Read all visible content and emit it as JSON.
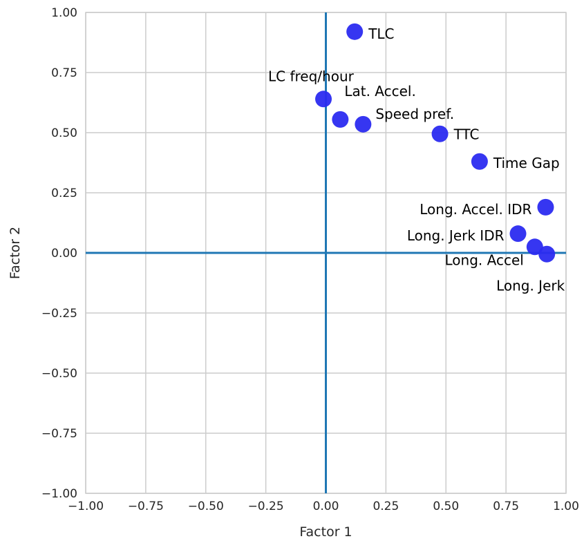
{
  "chart_data": {
    "type": "scatter",
    "title": "",
    "xlabel": "Factor 1",
    "ylabel": "Factor 2",
    "xlim": [
      -1.0,
      1.0
    ],
    "ylim": [
      -1.0,
      1.0
    ],
    "xticks": [
      "−1.00",
      "−0.75",
      "−0.50",
      "−0.25",
      "0.00",
      "0.25",
      "0.50",
      "0.75",
      "1.00"
    ],
    "yticks": [
      "1.00",
      "0.75",
      "0.50",
      "0.25",
      "0.00",
      "−0.25",
      "−0.50",
      "−0.75",
      "−1.00"
    ],
    "grid": true,
    "reference_lines": {
      "x": 0,
      "y": 0,
      "color": "#1f77b4"
    },
    "point_color": "#2b2bf0",
    "grid_color": "#cccccc",
    "points": [
      {
        "label": "TLC",
        "x": 0.12,
        "y": 0.92
      },
      {
        "label": "LC freq/hour",
        "x": -0.01,
        "y": 0.64
      },
      {
        "label": "Lat. Accel.",
        "x": 0.06,
        "y": 0.555
      },
      {
        "label": "Speed pref.",
        "x": 0.155,
        "y": 0.535
      },
      {
        "label": "TTC",
        "x": 0.475,
        "y": 0.495
      },
      {
        "label": "Time Gap",
        "x": 0.64,
        "y": 0.38
      },
      {
        "label": "Long. Accel. IDR",
        "x": 0.915,
        "y": 0.19
      },
      {
        "label": "Long. Jerk IDR",
        "x": 0.8,
        "y": 0.08
      },
      {
        "label": "Long. Accel",
        "x": 0.87,
        "y": 0.025
      },
      {
        "label": "Long. Jerk",
        "x": 0.92,
        "y": -0.005
      }
    ]
  }
}
